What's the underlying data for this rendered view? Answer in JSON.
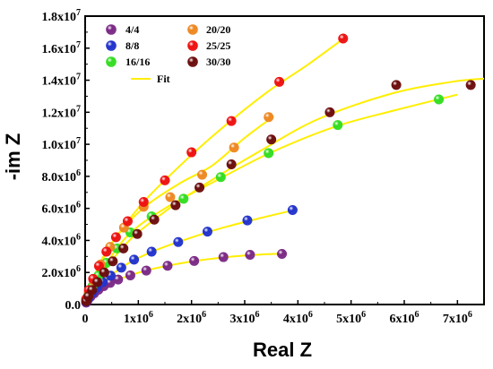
{
  "chart_data": {
    "type": "scatter",
    "xlabel": "Real Z",
    "ylabel": "-im Z",
    "xlim": [
      0,
      7500000
    ],
    "ylim": [
      0,
      18000000
    ],
    "grid": false,
    "legend_placement": "top-left",
    "x_ticks": [
      {
        "v": 0,
        "base": "0",
        "exp": ""
      },
      {
        "v": 1000000,
        "base": "1x10",
        "exp": "6"
      },
      {
        "v": 2000000,
        "base": "2x10",
        "exp": "6"
      },
      {
        "v": 3000000,
        "base": "3x10",
        "exp": "6"
      },
      {
        "v": 4000000,
        "base": "4x10",
        "exp": "6"
      },
      {
        "v": 5000000,
        "base": "5x10",
        "exp": "6"
      },
      {
        "v": 6000000,
        "base": "6x10",
        "exp": "6"
      },
      {
        "v": 7000000,
        "base": "7x10",
        "exp": "6"
      }
    ],
    "y_ticks": [
      {
        "v": 0,
        "base": "0.0",
        "exp": ""
      },
      {
        "v": 2000000,
        "base": "2.0x10",
        "exp": "6"
      },
      {
        "v": 4000000,
        "base": "4.0x10",
        "exp": "6"
      },
      {
        "v": 6000000,
        "base": "6.0x10",
        "exp": "6"
      },
      {
        "v": 8000000,
        "base": "8.0x10",
        "exp": "6"
      },
      {
        "v": 10000000,
        "base": "1.0x10",
        "exp": "7"
      },
      {
        "v": 12000000,
        "base": "1.2x10",
        "exp": "7"
      },
      {
        "v": 14000000,
        "base": "1.4x10",
        "exp": "7"
      },
      {
        "v": 16000000,
        "base": "1.6x10",
        "exp": "7"
      },
      {
        "v": 18000000,
        "base": "1.8x10",
        "exp": "7"
      }
    ],
    "fit": {
      "name": "Fit",
      "color": "#ffee00"
    },
    "series": [
      {
        "name": "4/4",
        "color": "#7b2a86",
        "points": [
          [
            20000,
            120000
          ],
          [
            50000,
            270000
          ],
          [
            100000,
            480000
          ],
          [
            170000,
            700000
          ],
          [
            250000,
            920000
          ],
          [
            350000,
            1150000
          ],
          [
            470000,
            1350000
          ],
          [
            620000,
            1560000
          ],
          [
            850000,
            1820000
          ],
          [
            1150000,
            2120000
          ],
          [
            1550000,
            2420000
          ],
          [
            2050000,
            2720000
          ],
          [
            2600000,
            2960000
          ],
          [
            3100000,
            3100000
          ],
          [
            3700000,
            3160000
          ]
        ]
      },
      {
        "name": "8/8",
        "color": "#2233cc",
        "points": [
          [
            20000,
            180000
          ],
          [
            60000,
            400000
          ],
          [
            130000,
            720000
          ],
          [
            220000,
            1050000
          ],
          [
            330000,
            1400000
          ],
          [
            480000,
            1800000
          ],
          [
            680000,
            2300000
          ],
          [
            920000,
            2800000
          ],
          [
            1250000,
            3300000
          ],
          [
            1750000,
            3900000
          ],
          [
            2300000,
            4550000
          ],
          [
            3050000,
            5250000
          ],
          [
            3900000,
            5900000
          ]
        ]
      },
      {
        "name": "16/16",
        "color": "#33dd22",
        "points": [
          [
            20000,
            250000
          ],
          [
            60000,
            600000
          ],
          [
            140000,
            1150000
          ],
          [
            250000,
            1800000
          ],
          [
            400000,
            2600000
          ],
          [
            600000,
            3500000
          ],
          [
            850000,
            4500000
          ],
          [
            1250000,
            5500000
          ],
          [
            1850000,
            6600000
          ],
          [
            2550000,
            7950000
          ],
          [
            3450000,
            9450000
          ],
          [
            4750000,
            11200000
          ],
          [
            6650000,
            12800000
          ]
        ]
      },
      {
        "name": "20/20",
        "color": "#ee8822",
        "points": [
          [
            20000,
            300000
          ],
          [
            70000,
            800000
          ],
          [
            160000,
            1500000
          ],
          [
            290000,
            2500000
          ],
          [
            470000,
            3600000
          ],
          [
            730000,
            4800000
          ],
          [
            1100000,
            6100000
          ],
          [
            1600000,
            6700000
          ],
          [
            2200000,
            8100000
          ],
          [
            2800000,
            9800000
          ],
          [
            3450000,
            11700000
          ]
        ]
      },
      {
        "name": "25/25",
        "color": "#ee1111",
        "points": [
          [
            20000,
            350000
          ],
          [
            70000,
            900000
          ],
          [
            150000,
            1600000
          ],
          [
            260000,
            2400000
          ],
          [
            400000,
            3300000
          ],
          [
            580000,
            4200000
          ],
          [
            800000,
            5200000
          ],
          [
            1100000,
            6400000
          ],
          [
            1500000,
            7750000
          ],
          [
            2000000,
            9500000
          ],
          [
            2750000,
            11450000
          ],
          [
            3650000,
            13900000
          ],
          [
            4850000,
            16600000
          ]
        ]
      },
      {
        "name": "30/30",
        "color": "#6b0d0d",
        "points": [
          [
            20000,
            200000
          ],
          [
            60000,
            500000
          ],
          [
            130000,
            900000
          ],
          [
            230000,
            1400000
          ],
          [
            360000,
            2000000
          ],
          [
            520000,
            2700000
          ],
          [
            720000,
            3500000
          ],
          [
            980000,
            4400000
          ],
          [
            1300000,
            5300000
          ],
          [
            1700000,
            6200000
          ],
          [
            2150000,
            7300000
          ],
          [
            2750000,
            8750000
          ],
          [
            3500000,
            10300000
          ],
          [
            4600000,
            12000000
          ],
          [
            5850000,
            13700000
          ],
          [
            7250000,
            13700000
          ]
        ]
      }
    ],
    "fit_curves": [
      {
        "name": "4/4",
        "points": [
          [
            0,
            0
          ],
          [
            100000,
            480000
          ],
          [
            300000,
            1050000
          ],
          [
            600000,
            1530000
          ],
          [
            1100000,
            2080000
          ],
          [
            1600000,
            2450000
          ],
          [
            2200000,
            2780000
          ],
          [
            2800000,
            3000000
          ],
          [
            3300000,
            3120000
          ],
          [
            3800000,
            3180000
          ]
        ]
      },
      {
        "name": "8/8",
        "points": [
          [
            0,
            0
          ],
          [
            150000,
            780000
          ],
          [
            400000,
            1580000
          ],
          [
            800000,
            2550000
          ],
          [
            1300000,
            3350000
          ],
          [
            1900000,
            4070000
          ],
          [
            2600000,
            4800000
          ],
          [
            3300000,
            5400000
          ],
          [
            4000000,
            5950000
          ]
        ]
      },
      {
        "name": "16/16",
        "points": [
          [
            0,
            0
          ],
          [
            300000,
            2000000
          ],
          [
            800000,
            4300000
          ],
          [
            1500000,
            6000000
          ],
          [
            2500000,
            7800000
          ],
          [
            3500000,
            9500000
          ],
          [
            4700000,
            11100000
          ],
          [
            5800000,
            12100000
          ],
          [
            7000000,
            13100000
          ]
        ]
      },
      {
        "name": "20/20",
        "points": [
          [
            0,
            0
          ],
          [
            300000,
            2600000
          ],
          [
            700000,
            4700000
          ],
          [
            1200000,
            6300000
          ],
          [
            1800000,
            7600000
          ],
          [
            2400000,
            8700000
          ],
          [
            3000000,
            10400000
          ],
          [
            3550000,
            11750000
          ]
        ]
      },
      {
        "name": "25/25",
        "points": [
          [
            0,
            0
          ],
          [
            250000,
            2400000
          ],
          [
            600000,
            4300000
          ],
          [
            1100000,
            6400000
          ],
          [
            1700000,
            8400000
          ],
          [
            2500000,
            10800000
          ],
          [
            3400000,
            13200000
          ],
          [
            4200000,
            15000000
          ],
          [
            4900000,
            16700000
          ]
        ]
      },
      {
        "name": "30/30",
        "points": [
          [
            0,
            0
          ],
          [
            300000,
            1800000
          ],
          [
            800000,
            3900000
          ],
          [
            1500000,
            5800000
          ],
          [
            2300000,
            7600000
          ],
          [
            3300000,
            9600000
          ],
          [
            4400000,
            11600000
          ],
          [
            5800000,
            13200000
          ],
          [
            6900000,
            13900000
          ],
          [
            7500000,
            14100000
          ]
        ]
      }
    ]
  }
}
